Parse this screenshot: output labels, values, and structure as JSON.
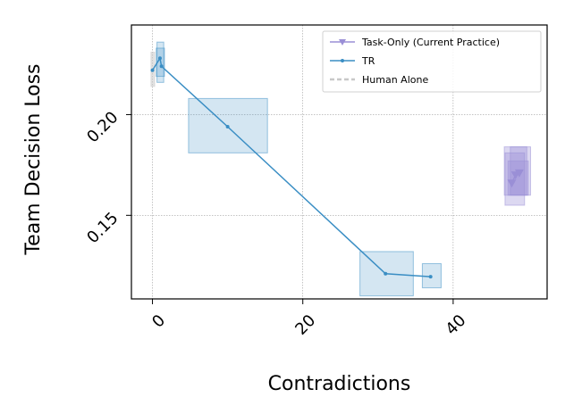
{
  "chart_data": {
    "type": "scatter",
    "title": "",
    "xlabel": "Contradictions",
    "ylabel": "Team Decision Loss",
    "xlim": [
      -2.8,
      52.5
    ],
    "ylim": [
      0.1085,
      0.2445
    ],
    "xticks": [
      0,
      20,
      40
    ],
    "xtick_labels": [
      "0",
      "20",
      "40"
    ],
    "yticks": [
      0.15,
      0.2
    ],
    "ytick_labels": [
      "0.15",
      "0.20"
    ],
    "grid": true,
    "legend_position": "top-right",
    "series": [
      {
        "name": "Task-Only (Current Practice)",
        "color": "#9a8fd6",
        "style": "line-triangle",
        "points": [
          {
            "x": 47.8,
            "y": 0.166
          },
          {
            "x": 48.3,
            "y": 0.17
          },
          {
            "x": 48.8,
            "y": 0.171
          }
        ],
        "error_boxes": [
          {
            "x0": 46.8,
            "x1": 49.8,
            "y0": 0.16,
            "y1": 0.184
          },
          {
            "x0": 47.3,
            "x1": 50.0,
            "y0": 0.16,
            "y1": 0.177
          },
          {
            "x0": 47.6,
            "x1": 50.3,
            "y0": 0.16,
            "y1": 0.184
          },
          {
            "x0": 46.9,
            "x1": 49.5,
            "y0": 0.155,
            "y1": 0.181
          }
        ]
      },
      {
        "name": "TR",
        "color": "#3a8ec4",
        "style": "line-dot",
        "points": [
          {
            "x": 0.0,
            "y": 0.222
          },
          {
            "x": 1.0,
            "y": 0.228
          },
          {
            "x": 1.2,
            "y": 0.224
          },
          {
            "x": 10.0,
            "y": 0.194
          },
          {
            "x": 31.0,
            "y": 0.121
          },
          {
            "x": 37.0,
            "y": 0.1195
          }
        ],
        "error_boxes": [
          {
            "x0": 0.6,
            "x1": 1.5,
            "y0": 0.216,
            "y1": 0.236
          },
          {
            "x0": 0.5,
            "x1": 1.6,
            "y0": 0.219,
            "y1": 0.233
          },
          {
            "x0": 4.8,
            "x1": 15.3,
            "y0": 0.181,
            "y1": 0.208
          },
          {
            "x0": 27.6,
            "x1": 34.7,
            "y0": 0.11,
            "y1": 0.132
          },
          {
            "x0": 35.9,
            "x1": 38.4,
            "y0": 0.114,
            "y1": 0.126
          }
        ]
      },
      {
        "name": "Human Alone",
        "color": "#c8c8c8",
        "style": "dashed",
        "points": [
          {
            "x": 0.0,
            "y": 0.222
          }
        ],
        "error_boxes": [
          {
            "x0": -0.2,
            "x1": 0.3,
            "y0": 0.214,
            "y1": 0.231
          }
        ]
      }
    ]
  }
}
